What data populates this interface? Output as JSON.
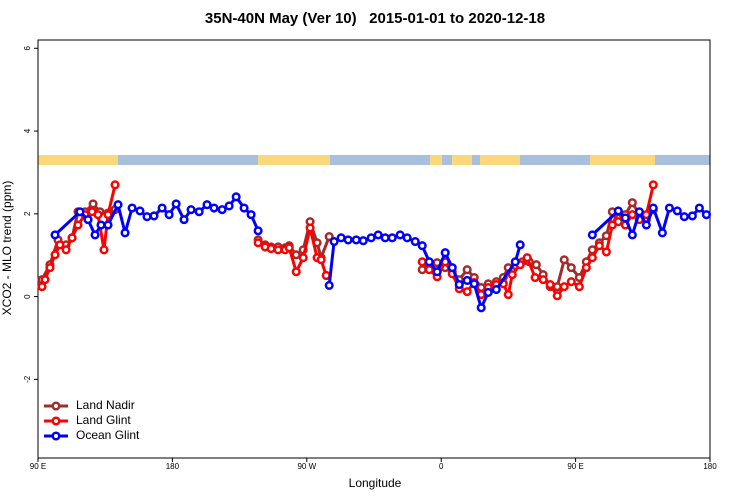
{
  "chart_data": {
    "type": "line",
    "title": "35N-40N May (Ver 10)   2015-01-01 to 2020-12-18",
    "x_label": "Longitude",
    "y_label": "XCO2 - MLO trend (ppm)",
    "xlim": [
      90,
      540
    ],
    "ylim": [
      -3.9,
      6.2
    ],
    "xticks": [
      {
        "value": 90,
        "label": "90 E"
      },
      180,
      {
        "value": 270,
        "label": "90 W"
      },
      {
        "value": 360,
        "label": "0"
      },
      {
        "value": 450,
        "label": "90 E"
      },
      180
    ],
    "yticks": [
      -2,
      0,
      2,
      4,
      6
    ],
    "legend": "bottom-left",
    "series": [
      {
        "name": "Land Nadir",
        "color": "#a52a2a",
        "x": [
          92.7,
          98,
          103.4,
          108.8,
          112.8,
          116.8,
          121.5,
          126.9,
          131.5,
          136.9,
          141.6,
          null,
          237.4,
          242.1,
          246.1,
          250.8,
          255.5,
          258.2,
          262.9,
          267.6,
          272.2,
          276.9,
          279.6,
          285,
          null,
          347.3,
          352,
          357.3,
          362.7,
          367.4,
          372.1,
          377.4,
          382.1,
          386.8,
          391.5,
          396.9,
          401.6,
          404.9,
          409.6,
          414.3,
          419,
          423.7,
          428.3,
          433,
          437.7,
          442.4,
          447.1,
          452.5,
          457.2,
          461.2,
          465.9,
          470.6,
          474.6,
          478.6,
          483.3,
          488,
          492.7,
          497.4,
          502
        ],
        "values": [
          0.41,
          0.77,
          1.37,
          1.25,
          1.42,
          2.05,
          2.05,
          2.24,
          2.05,
          2.02,
          2.1,
          null,
          1.37,
          1.25,
          1.2,
          1.2,
          1.18,
          1.23,
          1.01,
          1.13,
          1.81,
          1.3,
          0.94,
          1.45,
          null,
          0.65,
          0.84,
          0.82,
          0.7,
          0.6,
          0.41,
          0.65,
          0.46,
          0.22,
          0.31,
          0.36,
          0.46,
          0.7,
          0.75,
          0.84,
          0.84,
          0.77,
          0.53,
          0.24,
          0.24,
          0.89,
          0.7,
          0.46,
          0.84,
          1.13,
          1.3,
          1.47,
          2.05,
          1.81,
          1.98,
          2.27,
          1.98,
          1.86,
          2.1
        ]
      },
      {
        "name": "Land Glint",
        "color": "#ff0000",
        "x": [
          92.7,
          94.7,
          98,
          101.4,
          104.7,
          108.8,
          112.8,
          116.8,
          121.5,
          126.2,
          130.2,
          134.2,
          136.9,
          141.6,
          null,
          237.4,
          242.1,
          246.1,
          250.8,
          255.5,
          258.2,
          262.9,
          267.6,
          272.2,
          276.9,
          279.6,
          283,
          null,
          347.3,
          352,
          357.3,
          362.7,
          367.4,
          372.1,
          377.4,
          382.1,
          386.8,
          391.5,
          396.9,
          401.6,
          404.9,
          407.6,
          412.9,
          417.6,
          422.9,
          428.3,
          433,
          437.7,
          442.4,
          447.1,
          452.5,
          457.2,
          461.2,
          465.9,
          470.6,
          474.6,
          478.6,
          483.3,
          488,
          492.7,
          497.4,
          502
        ],
        "values": [
          0.24,
          0.41,
          0.7,
          1.01,
          1.25,
          1.13,
          1.42,
          1.73,
          1.98,
          2.05,
          1.98,
          1.13,
          1.98,
          2.7,
          null,
          1.3,
          1.2,
          1.16,
          1.13,
          1.13,
          1.18,
          0.6,
          0.94,
          1.66,
          0.94,
          0.89,
          0.51,
          null,
          0.84,
          0.65,
          0.48,
          0.84,
          0.55,
          0.19,
          0.12,
          0.34,
          0.05,
          0.22,
          0.29,
          0.31,
          0.05,
          0.53,
          0.77,
          0.94,
          0.46,
          0.41,
          0.29,
          0.02,
          0.24,
          0.36,
          0.24,
          0.7,
          0.94,
          1.23,
          1.08,
          1.73,
          2.05,
          1.73,
          1.98,
          1.86,
          1.98,
          2.7
        ]
      },
      {
        "name": "Ocean Glint",
        "color": "#0000ff",
        "x": [
          101.4,
          118.1,
          123.5,
          128.2,
          132.2,
          136.9,
          143.6,
          148.3,
          153,
          158.3,
          163,
          167.7,
          173.1,
          177.8,
          182.5,
          187.8,
          192.5,
          197.9,
          203.2,
          207.9,
          213.3,
          218,
          222.7,
          228,
          232.7,
          237.4,
          null,
          285,
          288.3,
          293,
          297.7,
          303.1,
          307.8,
          313.1,
          317.8,
          322.5,
          327.2,
          332.5,
          337.2,
          342.6,
          347.3,
          352,
          357.3,
          362.7,
          367.4,
          372.1,
          377.4,
          382.1,
          386.8,
          391.5,
          396.9,
          409.6,
          412.9,
          null,
          461.2,
          478.6,
          483.3,
          488,
          492.7,
          497.4,
          502,
          508.1,
          512.8,
          518.1,
          522.8,
          528.2,
          532.9,
          537.6
        ],
        "values": [
          1.49,
          2.05,
          1.86,
          1.49,
          1.73,
          1.73,
          2.22,
          1.54,
          2.14,
          2.07,
          1.93,
          1.95,
          2.14,
          1.98,
          2.24,
          1.86,
          2.1,
          2.05,
          2.22,
          2.14,
          2.1,
          2.19,
          2.41,
          2.14,
          1.98,
          1.59,
          null,
          0.27,
          1.33,
          1.42,
          1.37,
          1.37,
          1.35,
          1.42,
          1.49,
          1.42,
          1.42,
          1.49,
          1.42,
          1.33,
          1.23,
          0.84,
          0.6,
          1.06,
          0.7,
          0.29,
          0.39,
          0.31,
          -0.27,
          0.1,
          0.17,
          0.84,
          1.25,
          null,
          1.49,
          2.07,
          1.9,
          1.49,
          2.05,
          1.73,
          2.14,
          1.54,
          2.14,
          2.07,
          1.93,
          1.95,
          2.14,
          1.98
        ]
      }
    ]
  }
}
